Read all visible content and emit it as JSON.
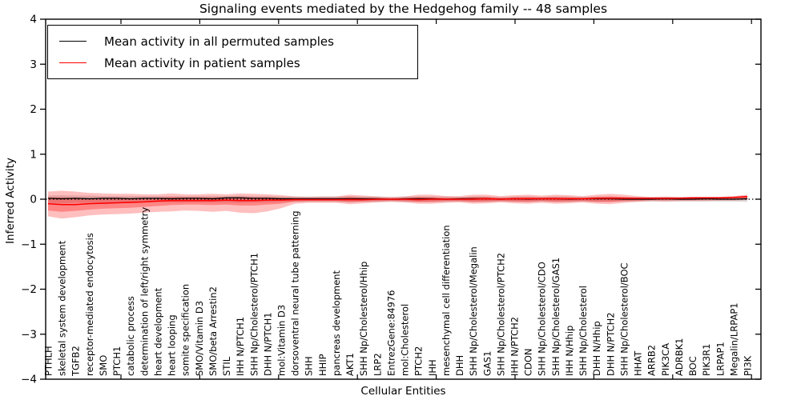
{
  "chart_data": {
    "type": "line",
    "title": "Signaling events mediated by the Hedgehog family -- 48 samples",
    "xlabel": "Cellular Entities",
    "ylabel": "Inferred Activity",
    "ylim": [
      -4,
      4
    ],
    "ytick_values": [
      4,
      3,
      2,
      1,
      0,
      -1,
      -2,
      -3,
      -4
    ],
    "ytick_labels": [
      "4",
      "3",
      "2",
      "1",
      "0",
      "−1",
      "−2",
      "−3",
      "−4"
    ],
    "grid": false,
    "zero_reference_line": 0,
    "legend": {
      "position": "upper left",
      "items": [
        {
          "label": "Mean activity in all permuted samples",
          "color": "#000000"
        },
        {
          "label": "Mean activity in patient samples",
          "color": "#ff0000"
        }
      ]
    },
    "colors": {
      "patient_line": "#ff0000",
      "permuted_line": "#000000",
      "patient_band": "#ff0000",
      "permuted_band": "#888888",
      "zero_line": "#000000"
    },
    "categories": [
      "PTHLH",
      "skeletal system development",
      "TGFB2",
      "receptor-mediated endocytosis",
      "SMO",
      "PTCH1",
      "catabolic process",
      "determination of left/right symmetry",
      "heart development",
      "heart looping",
      "somite specification",
      "SMO/Vitamin D3",
      "SMO/beta Arrestin2",
      "STIL",
      "IHH N/PTCH1",
      "SHH Np/Cholesterol/PTCH1",
      "DHH N/PTCH1",
      "mol:Vitamin D3",
      "dorsoventral neural tube patterning",
      "SHH",
      "HHIP",
      "pancreas development",
      "AKT1",
      "SHH Np/Cholesterol/Hhip",
      "LRP2",
      "EntrezGene:84976",
      "mol:Cholesterol",
      "PTCH2",
      "IHH",
      "mesenchymal cell differentiation",
      "DHH",
      "SHH Np/Cholesterol/Megalin",
      "GAS1",
      "SHH Np/Cholesterol/PTCH2",
      "IHH N/PTCH2",
      "CDON",
      "SHH Np/Cholesterol/CDO",
      "SHH Np/Cholesterol/GAS1",
      "IHH N/Hhip",
      "SHH Np/Cholesterol",
      "DHH N/Hhip",
      "DHH N/PTCH2",
      "SHH Np/Cholesterol/BOC",
      "HHAT",
      "ARRB2",
      "PIK3CA",
      "ADRBK1",
      "BOC",
      "PIK3R1",
      "LRPAP1",
      "Megalin/LRPAP1",
      "PI3K"
    ],
    "series": [
      {
        "name": "Mean activity in all permuted samples",
        "values": [
          0.02,
          0.01,
          0.02,
          0.01,
          0.02,
          0.02,
          0.01,
          0.02,
          0.02,
          0.01,
          0.02,
          0.02,
          0.01,
          0.03,
          0.03,
          0.02,
          0.02,
          0.01,
          0.01,
          0.01,
          0.01,
          0.01,
          0.01,
          0.01,
          0.01,
          0.0,
          0.01,
          0.01,
          0.01,
          0.0,
          0.01,
          0.01,
          0.01,
          0.0,
          0.01,
          0.0,
          0.01,
          0.01,
          0.0,
          0.01,
          0.01,
          0.01,
          0.0,
          0.0,
          0.0,
          0.01,
          0.0,
          0.0,
          0.01,
          0.0,
          0.0,
          0.01
        ]
      },
      {
        "name": "Mean activity in patient samples",
        "values": [
          -0.1,
          -0.12,
          -0.12,
          -0.1,
          -0.09,
          -0.08,
          -0.07,
          -0.06,
          -0.04,
          -0.03,
          -0.03,
          -0.03,
          -0.03,
          -0.02,
          -0.03,
          -0.03,
          -0.02,
          -0.02,
          -0.01,
          -0.01,
          -0.01,
          -0.01,
          -0.01,
          -0.01,
          0.0,
          0.0,
          0.0,
          -0.01,
          0.0,
          0.0,
          0.0,
          0.0,
          0.01,
          0.0,
          0.01,
          0.01,
          0.01,
          0.01,
          0.01,
          0.01,
          0.02,
          0.02,
          0.02,
          0.02,
          0.02,
          0.02,
          0.02,
          0.03,
          0.03,
          0.03,
          0.04,
          0.06
        ]
      }
    ],
    "bands": {
      "patient_outer_hi": [
        0.17,
        0.19,
        0.17,
        0.14,
        0.13,
        0.12,
        0.12,
        0.11,
        0.11,
        0.13,
        0.11,
        0.11,
        0.12,
        0.11,
        0.13,
        0.12,
        0.11,
        0.09,
        0.06,
        0.05,
        0.06,
        0.06,
        0.1,
        0.08,
        0.06,
        0.05,
        0.06,
        0.1,
        0.1,
        0.07,
        0.07,
        0.1,
        0.1,
        0.07,
        0.09,
        0.1,
        0.08,
        0.1,
        0.09,
        0.07,
        0.1,
        0.12,
        0.1,
        0.07,
        0.05,
        0.06,
        0.05,
        0.05,
        0.05,
        0.05,
        0.07,
        0.1
      ],
      "patient_outer_lo": [
        -0.38,
        -0.43,
        -0.4,
        -0.36,
        -0.34,
        -0.33,
        -0.32,
        -0.3,
        -0.28,
        -0.27,
        -0.25,
        -0.26,
        -0.28,
        -0.26,
        -0.3,
        -0.31,
        -0.27,
        -0.2,
        -0.1,
        -0.08,
        -0.08,
        -0.08,
        -0.11,
        -0.09,
        -0.07,
        -0.06,
        -0.07,
        -0.1,
        -0.1,
        -0.08,
        -0.07,
        -0.1,
        -0.09,
        -0.07,
        -0.09,
        -0.1,
        -0.08,
        -0.1,
        -0.09,
        -0.07,
        -0.1,
        -0.11,
        -0.08,
        -0.06,
        -0.04,
        -0.05,
        -0.04,
        -0.04,
        -0.04,
        -0.03,
        -0.03,
        -0.02
      ],
      "patient_inner_hi": [
        0.04,
        0.04,
        0.03,
        0.02,
        0.02,
        0.02,
        0.02,
        0.02,
        0.03,
        0.05,
        0.04,
        0.04,
        0.04,
        0.04,
        0.05,
        0.04,
        0.04,
        0.03,
        0.02,
        0.02,
        0.02,
        0.02,
        0.05,
        0.03,
        0.02,
        0.02,
        0.02,
        0.05,
        0.04,
        0.03,
        0.03,
        0.05,
        0.05,
        0.03,
        0.04,
        0.05,
        0.04,
        0.05,
        0.04,
        0.03,
        0.05,
        0.06,
        0.05,
        0.03,
        0.02,
        0.03,
        0.02,
        0.02,
        0.03,
        0.03,
        0.04,
        0.07
      ],
      "patient_inner_lo": [
        -0.25,
        -0.28,
        -0.26,
        -0.23,
        -0.21,
        -0.2,
        -0.19,
        -0.17,
        -0.15,
        -0.13,
        -0.12,
        -0.12,
        -0.13,
        -0.12,
        -0.14,
        -0.14,
        -0.12,
        -0.1,
        -0.05,
        -0.04,
        -0.04,
        -0.04,
        -0.06,
        -0.05,
        -0.04,
        -0.03,
        -0.04,
        -0.06,
        -0.06,
        -0.04,
        -0.04,
        -0.06,
        -0.05,
        -0.04,
        -0.05,
        -0.06,
        -0.04,
        -0.06,
        -0.05,
        -0.04,
        -0.06,
        -0.06,
        -0.04,
        -0.03,
        -0.02,
        -0.02,
        -0.02,
        -0.02,
        -0.01,
        -0.01,
        0.0,
        0.02
      ],
      "permuted_hi": [
        0.08,
        0.09,
        0.08,
        0.08,
        0.07,
        0.07,
        0.07,
        0.07,
        0.07,
        0.07,
        0.07,
        0.07,
        0.07,
        0.07,
        0.08,
        0.07,
        0.07,
        0.06,
        0.06,
        0.06,
        0.06,
        0.06,
        0.07,
        0.06,
        0.06,
        0.05,
        0.06,
        0.06,
        0.06,
        0.06,
        0.05,
        0.06,
        0.06,
        0.05,
        0.06,
        0.06,
        0.05,
        0.06,
        0.06,
        0.05,
        0.06,
        0.06,
        0.05,
        0.05,
        0.05,
        0.05,
        0.05,
        0.05,
        0.05,
        0.05,
        0.05,
        0.06
      ],
      "permuted_lo": [
        -0.08,
        -0.09,
        -0.08,
        -0.08,
        -0.07,
        -0.07,
        -0.07,
        -0.07,
        -0.07,
        -0.07,
        -0.07,
        -0.07,
        -0.07,
        -0.07,
        -0.08,
        -0.07,
        -0.07,
        -0.06,
        -0.06,
        -0.06,
        -0.06,
        -0.06,
        -0.07,
        -0.06,
        -0.06,
        -0.05,
        -0.06,
        -0.06,
        -0.06,
        -0.06,
        -0.05,
        -0.06,
        -0.06,
        -0.05,
        -0.06,
        -0.06,
        -0.05,
        -0.06,
        -0.06,
        -0.05,
        -0.06,
        -0.06,
        -0.05,
        -0.05,
        -0.05,
        -0.05,
        -0.05,
        -0.05,
        -0.05,
        -0.05,
        -0.05,
        -0.06
      ]
    }
  }
}
